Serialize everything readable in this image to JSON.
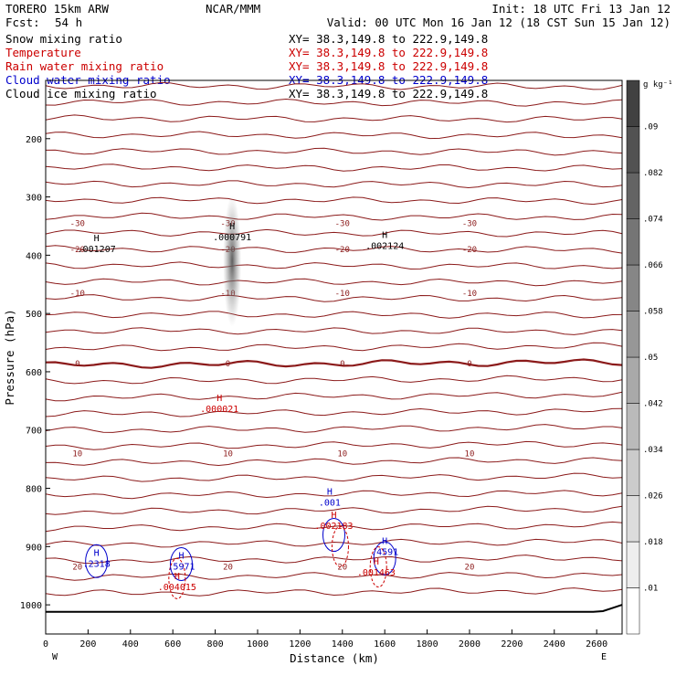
{
  "header": {
    "model": "TORERO  15km ARW",
    "org": "NCAR/MMM",
    "init": "Init: 18 UTC Fri 13 Jan 12",
    "fcst_label": "Fcst:",
    "fcst_value": "54 h",
    "valid": "Valid: 00 UTC Mon 16 Jan 12 (18 CST Sun 15 Jan 12)"
  },
  "fields": [
    {
      "name": "Snow mixing ratio",
      "color": "#000000",
      "xy": ""
    },
    {
      "name": "Temperature",
      "color": "#cc0000",
      "xy": "XY=  38.3,149.8 to 222.9,149.8"
    },
    {
      "name": "Rain water mixing ratio",
      "color": "#cc0000",
      "xy": "XY=  38.3,149.8 to 222.9,149.8"
    },
    {
      "name": "Cloud water mixing ratio",
      "color": "#0000cc",
      "xy": "XY=  38.3,149.8 to 222.9,149.8"
    },
    {
      "name": "Cloud ice mixing ratio",
      "color": "#000000",
      "xy": "XY=  38.3,149.8 to 222.9,149.8"
    }
  ],
  "snow_xy": "XY=  38.3,149.8 to 222.9,149.8",
  "colorbar": {
    "unit": "g kg⁻¹",
    "ticks": [
      ".01",
      ".018",
      ".026",
      ".034",
      ".042",
      ".05",
      ".058",
      ".066",
      ".074",
      ".082",
      ".09"
    ]
  },
  "chart_data": {
    "type": "contour cross-section",
    "xlabel": "Distance (km)",
    "ylabel": "Pressure (hPa)",
    "xlim": [
      0,
      2720
    ],
    "ylim": [
      1050,
      100
    ],
    "xticks": [
      0,
      200,
      400,
      600,
      800,
      1000,
      1200,
      1400,
      1600,
      1800,
      2000,
      2200,
      2400,
      2600
    ],
    "yticks": [
      200,
      300,
      400,
      500,
      600,
      700,
      800,
      900,
      1000
    ],
    "x_end_labels": [
      "W",
      "E"
    ],
    "temperature_isotherms_C": [
      {
        "label": "-30",
        "p": 345
      },
      {
        "label": "-20",
        "p": 390
      },
      {
        "label": "-10",
        "p": 465
      },
      {
        "label": "0",
        "p": 586
      },
      {
        "label": "10",
        "p": 740
      },
      {
        "label": "20",
        "p": 935
      }
    ],
    "maxima": [
      {
        "text": "H",
        "value": ".001207",
        "x": 240,
        "p": 385,
        "color": "#000000"
      },
      {
        "text": "H",
        "value": ".000791",
        "x": 880,
        "p": 365,
        "color": "#000000"
      },
      {
        "text": "H",
        "value": ".002124",
        "x": 1600,
        "p": 380,
        "color": "#000000"
      },
      {
        "text": "H",
        "value": ".000021",
        "x": 820,
        "p": 660,
        "color": "#cc0000"
      },
      {
        "text": "H",
        "value": ".001",
        "x": 1340,
        "p": 820,
        "color": "#0000cc"
      },
      {
        "text": "H",
        "value": ".002183",
        "x": 1360,
        "p": 860,
        "color": "#cc0000"
      },
      {
        "text": "H",
        "value": ".4591",
        "x": 1600,
        "p": 905,
        "color": "#0000cc"
      },
      {
        "text": "H",
        "value": ".2318",
        "x": 240,
        "p": 925,
        "color": "#0000cc"
      },
      {
        "text": "H",
        "value": ".5971",
        "x": 640,
        "p": 930,
        "color": "#0000cc"
      },
      {
        "text": "H",
        "value": ".004015",
        "x": 620,
        "p": 965,
        "color": "#cc0000"
      },
      {
        "text": "H",
        "value": ".001463",
        "x": 1560,
        "p": 940,
        "color": "#cc0000"
      }
    ]
  }
}
